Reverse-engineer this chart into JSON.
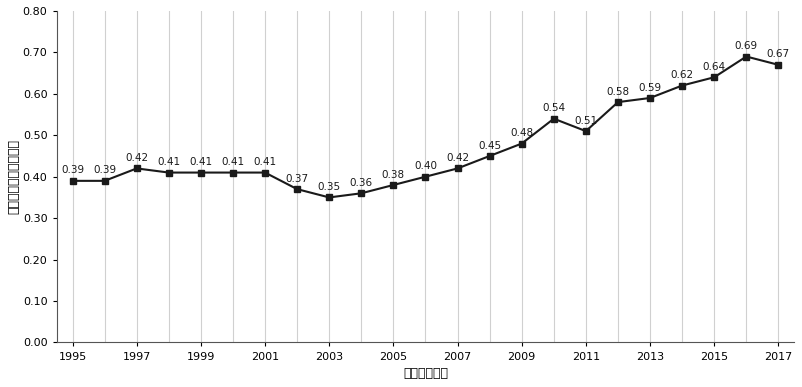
{
  "years": [
    1995,
    1996,
    1997,
    1998,
    1999,
    2000,
    2001,
    2002,
    2003,
    2004,
    2005,
    2006,
    2007,
    2008,
    2009,
    2010,
    2011,
    2012,
    2013,
    2014,
    2015,
    2016,
    2017
  ],
  "values": [
    0.39,
    0.39,
    0.42,
    0.41,
    0.41,
    0.41,
    0.41,
    0.37,
    0.35,
    0.36,
    0.38,
    0.4,
    0.42,
    0.45,
    0.48,
    0.54,
    0.51,
    0.58,
    0.59,
    0.62,
    0.64,
    0.69,
    0.67
  ],
  "labels": [
    "0.39",
    "0.39",
    "0.42",
    "0.41",
    "0.41",
    "0.41",
    "0.41",
    "0.37",
    "0.35",
    "0.36",
    "0.38",
    "0.40",
    "0.42",
    "0.45",
    "0.48",
    "0.54",
    "0.51",
    "0.58",
    "0.59",
    "0.62",
    "0.64",
    "0.69",
    "0.67"
  ],
  "xlabel": "时间跟度：年",
  "ylabel": "能源复合系统可持续度",
  "line_color": "#1a1a1a",
  "marker": "s",
  "marker_color": "#1a1a1a",
  "marker_size": 4,
  "line_width": 1.5,
  "ylim": [
    0.0,
    0.8
  ],
  "yticks": [
    0.0,
    0.1,
    0.2,
    0.3,
    0.4,
    0.5,
    0.6,
    0.7,
    0.8
  ],
  "xtick_displayed": [
    1995,
    1997,
    1999,
    2001,
    2003,
    2005,
    2007,
    2009,
    2011,
    2013,
    2015,
    2017
  ],
  "grid_color": "#d0d0d0",
  "background_color": "#ffffff",
  "label_fontsize": 7.5,
  "axis_label_fontsize": 9,
  "tick_fontsize": 8
}
